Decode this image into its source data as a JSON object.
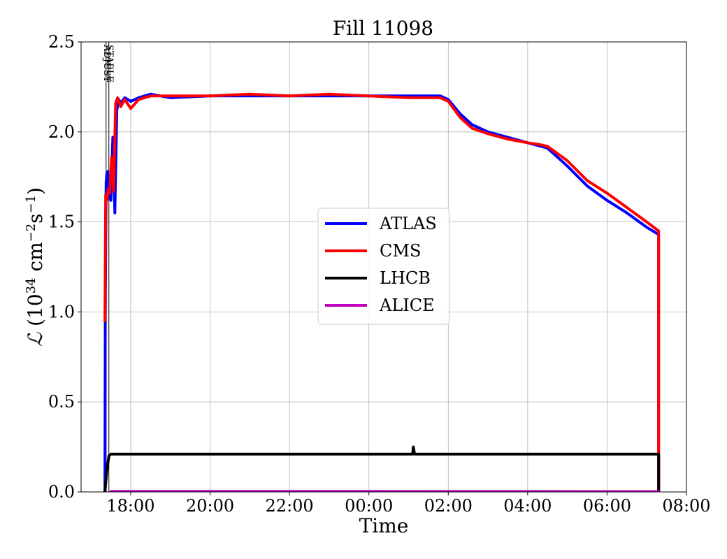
{
  "chart_data": {
    "type": "line",
    "title": "Fill 11098",
    "xlabel": "Time",
    "ylabel": {
      "symbol": "ℒ",
      "text": " (10",
      "exp1": "34",
      "mid": " cm",
      "exp2": "−2",
      "mid2": "s",
      "exp3": "−1",
      "end": ")"
    },
    "x_unit": "hours since 00:00 (day 1); values past 24 are on the next day",
    "xlim": [
      16.75,
      32.0
    ],
    "ylim": [
      0.0,
      2.5
    ],
    "x_ticks": [
      {
        "value": 18,
        "label": "18:00"
      },
      {
        "value": 20,
        "label": "20:00"
      },
      {
        "value": 22,
        "label": "22:00"
      },
      {
        "value": 24,
        "label": "00:00"
      },
      {
        "value": 26,
        "label": "02:00"
      },
      {
        "value": 28,
        "label": "04:00"
      },
      {
        "value": 30,
        "label": "06:00"
      },
      {
        "value": 32,
        "label": "08:00"
      }
    ],
    "y_ticks": [
      {
        "value": 0.0,
        "label": "0.0"
      },
      {
        "value": 0.5,
        "label": "0.5"
      },
      {
        "value": 1.0,
        "label": "1.0"
      },
      {
        "value": 1.5,
        "label": "1.5"
      },
      {
        "value": 2.0,
        "label": "2.0"
      },
      {
        "value": 2.5,
        "label": "2.5"
      }
    ],
    "grid": true,
    "legend_position": "center",
    "annotations": [
      {
        "label": "ADJUST",
        "x": 17.38
      },
      {
        "label": "STABLE",
        "x": 17.45
      }
    ],
    "series": [
      {
        "name": "ATLAS",
        "color": "#0000ff",
        "x": [
          17.35,
          17.36,
          17.38,
          17.4,
          17.42,
          17.45,
          17.5,
          17.55,
          17.6,
          17.65,
          17.7,
          17.75,
          17.85,
          18.0,
          18.2,
          18.5,
          19.0,
          20.0,
          21.0,
          22.0,
          23.0,
          24.0,
          25.0,
          25.8,
          26.0,
          26.3,
          26.6,
          27.0,
          27.5,
          28.0,
          28.5,
          29.0,
          29.5,
          30.0,
          30.5,
          31.0,
          31.3,
          31.3
        ],
        "y": [
          0.0,
          0.97,
          1.72,
          1.77,
          1.78,
          1.65,
          1.62,
          1.97,
          1.55,
          2.12,
          2.18,
          2.16,
          2.19,
          2.17,
          2.19,
          2.21,
          2.19,
          2.2,
          2.2,
          2.2,
          2.2,
          2.2,
          2.2,
          2.2,
          2.18,
          2.1,
          2.04,
          2.0,
          1.97,
          1.94,
          1.91,
          1.81,
          1.7,
          1.62,
          1.55,
          1.47,
          1.43,
          0.0
        ]
      },
      {
        "name": "CMS",
        "color": "#ff0000",
        "x": [
          17.35,
          17.37,
          17.4,
          17.43,
          17.47,
          17.52,
          17.57,
          17.62,
          17.67,
          17.75,
          17.85,
          18.0,
          18.2,
          18.5,
          19.0,
          20.0,
          21.0,
          22.0,
          23.0,
          24.0,
          25.0,
          25.8,
          26.0,
          26.3,
          26.6,
          27.0,
          27.5,
          28.0,
          28.3,
          28.5,
          29.0,
          29.5,
          30.0,
          30.5,
          31.0,
          31.3,
          31.3
        ],
        "y": [
          0.95,
          1.65,
          1.62,
          1.68,
          1.66,
          1.86,
          1.67,
          2.16,
          2.19,
          2.14,
          2.18,
          2.13,
          2.18,
          2.2,
          2.2,
          2.2,
          2.21,
          2.2,
          2.21,
          2.2,
          2.19,
          2.19,
          2.17,
          2.08,
          2.02,
          1.99,
          1.96,
          1.94,
          1.93,
          1.92,
          1.84,
          1.73,
          1.66,
          1.58,
          1.5,
          1.45,
          0.0
        ]
      },
      {
        "name": "LHCB",
        "color": "#000000",
        "x": [
          17.35,
          17.4,
          17.45,
          17.5,
          18.0,
          20.0,
          22.0,
          24.0,
          25.1,
          25.12,
          25.15,
          26.0,
          28.0,
          30.0,
          31.3,
          31.3
        ],
        "y": [
          0.0,
          0.12,
          0.2,
          0.21,
          0.21,
          0.21,
          0.21,
          0.21,
          0.21,
          0.25,
          0.21,
          0.21,
          0.21,
          0.21,
          0.21,
          0.0
        ]
      },
      {
        "name": "ALICE",
        "color": "#bf00bf",
        "x": [
          17.5,
          19.4,
          31.3
        ],
        "y": [
          0.003,
          0.003,
          0.002
        ]
      }
    ]
  }
}
